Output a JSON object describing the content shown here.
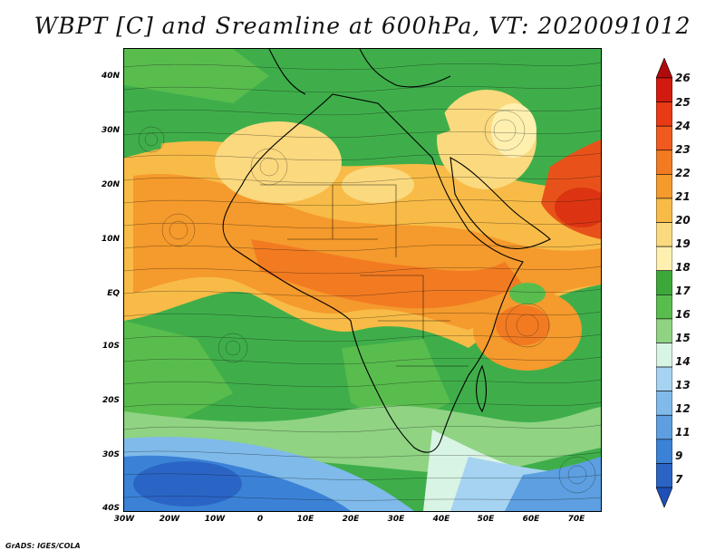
{
  "title": "WBPT [C] and Sreamline at 600hPa, VT: 2020091012",
  "footer": "GrADS: IGES/COLA",
  "lat_labels": [
    "40N",
    "30N",
    "20N",
    "10N",
    "EQ",
    "10S",
    "20S",
    "30S",
    "40S"
  ],
  "lon_labels": [
    "30W",
    "20W",
    "10W",
    "0",
    "10E",
    "20E",
    "30E",
    "40E",
    "50E",
    "60E",
    "70E"
  ],
  "colorbar": {
    "labels": [
      "26",
      "25",
      "24",
      "23",
      "22",
      "21",
      "20",
      "19",
      "18",
      "17",
      "16",
      "15",
      "14",
      "13",
      "12",
      "11",
      "9",
      "7"
    ],
    "colors": [
      "#b10a0a",
      "#d21b0e",
      "#e83a14",
      "#f05a1e",
      "#f27b22",
      "#f59a2c",
      "#f8bb47",
      "#fbd97f",
      "#fff0b0",
      "#3da83a",
      "#59bd4e",
      "#8fd383",
      "#d8f4e4",
      "#a6d3f2",
      "#7fbaea",
      "#5d9fe0",
      "#3b82d6",
      "#2a65c6",
      "#1f4fb8"
    ]
  },
  "field_colors": {
    "green": "#3fae4a",
    "light_green": "#8fd383",
    "yellow": "#fbd97f",
    "orange": "#f59a2c",
    "dark_orange": "#f27b22",
    "red_orange": "#e8521a",
    "blue": "#3b82d6",
    "light_blue": "#a6d3f2"
  }
}
